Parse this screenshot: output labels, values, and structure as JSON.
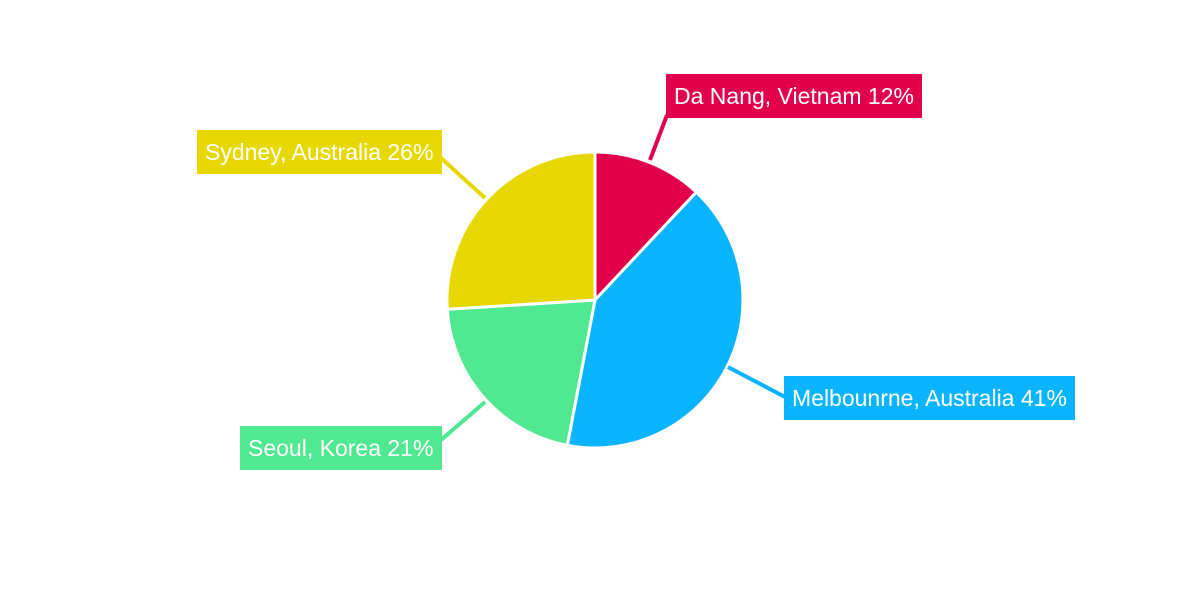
{
  "chart_data": {
    "type": "pie",
    "slices": [
      {
        "label": "Da Nang, Vietnam",
        "value": 12,
        "pct_label": "12%",
        "color": "#e3004b"
      },
      {
        "label": "Melbounrne, Australia",
        "value": 41,
        "pct_label": "41%",
        "color": "#0bb4ff"
      },
      {
        "label": "Seoul, Korea",
        "value": 21,
        "pct_label": "21%",
        "color": "#50e991"
      },
      {
        "label": "Sydney, Australia",
        "value": 26,
        "pct_label": "26%",
        "color": "#e6d800"
      }
    ],
    "start_angle": "12 o'clock",
    "direction": "clockwise",
    "legend": "none",
    "labels": "callouts"
  }
}
